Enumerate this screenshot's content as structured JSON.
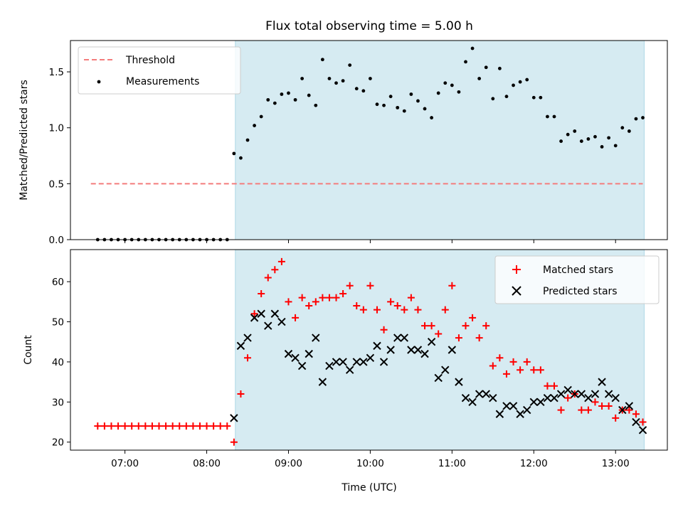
{
  "chart_data": [
    {
      "type": "scatter",
      "title": "Flux total observing time = 5.00 h",
      "xlabel": "",
      "ylabel": "Matched/Predicted stars",
      "ylim": [
        0,
        1.78
      ],
      "xlim": [
        "06:20",
        "13:38"
      ],
      "yticks": [
        "0.0",
        "0.5",
        "1.0",
        "1.5"
      ],
      "shaded_span": [
        "08:21",
        "13:21"
      ],
      "legend_position": "top-left",
      "threshold": {
        "name": "Threshold",
        "value": 0.5,
        "x": [
          "06:35",
          "13:20"
        ],
        "color": "#f47c7c"
      },
      "measurements": {
        "name": "Measurements",
        "color": "#000000",
        "x": [
          "06:40",
          "06:45",
          "06:50",
          "06:55",
          "07:00",
          "07:05",
          "07:10",
          "07:15",
          "07:20",
          "07:25",
          "07:30",
          "07:35",
          "07:40",
          "07:45",
          "07:50",
          "07:55",
          "08:00",
          "08:05",
          "08:10",
          "08:15",
          "08:20",
          "08:25",
          "08:30",
          "08:35",
          "08:40",
          "08:45",
          "08:50",
          "08:55",
          "09:00",
          "09:05",
          "09:10",
          "09:15",
          "09:20",
          "09:25",
          "09:30",
          "09:35",
          "09:40",
          "09:45",
          "09:50",
          "09:55",
          "10:00",
          "10:05",
          "10:10",
          "10:15",
          "10:20",
          "10:25",
          "10:30",
          "10:35",
          "10:40",
          "10:45",
          "10:50",
          "10:55",
          "11:00",
          "11:05",
          "11:10",
          "11:15",
          "11:20",
          "11:25",
          "11:30",
          "11:35",
          "11:40",
          "11:45",
          "11:50",
          "11:55",
          "12:00",
          "12:05",
          "12:10",
          "12:15",
          "12:20",
          "12:25",
          "12:30",
          "12:35",
          "12:40",
          "12:45",
          "12:50",
          "12:55",
          "13:00",
          "13:05",
          "13:10",
          "13:15",
          "13:20"
        ],
        "y": [
          0,
          0,
          0,
          0,
          0,
          0,
          0,
          0,
          0,
          0,
          0,
          0,
          0,
          0,
          0,
          0,
          0,
          0,
          0,
          0,
          0.77,
          0.73,
          0.89,
          1.02,
          1.1,
          1.25,
          1.22,
          1.3,
          1.31,
          1.25,
          1.44,
          1.29,
          1.2,
          1.61,
          1.44,
          1.4,
          1.42,
          1.56,
          1.35,
          1.33,
          1.44,
          1.21,
          1.2,
          1.28,
          1.18,
          1.15,
          1.3,
          1.24,
          1.17,
          1.09,
          1.31,
          1.4,
          1.38,
          1.32,
          1.59,
          1.71,
          1.44,
          1.54,
          1.26,
          1.53,
          1.28,
          1.38,
          1.41,
          1.43,
          1.27,
          1.27,
          1.1,
          1.1,
          0.88,
          0.94,
          0.97,
          0.88,
          0.9,
          0.92,
          0.83,
          0.91,
          0.84,
          1.0,
          0.97,
          1.08,
          1.09
        ]
      }
    },
    {
      "type": "scatter",
      "title": "",
      "xlabel": "Time (UTC)",
      "ylabel": "Count",
      "ylim": [
        18,
        68
      ],
      "xlim": [
        "06:20",
        "13:38"
      ],
      "xticks": [
        "07:00",
        "08:00",
        "09:00",
        "10:00",
        "11:00",
        "12:00",
        "13:00"
      ],
      "yticks": [
        20,
        30,
        40,
        50,
        60
      ],
      "shaded_span": [
        "08:21",
        "13:21"
      ],
      "legend_position": "top-right",
      "series": [
        {
          "name": "Matched stars",
          "marker": "+",
          "color": "#ff0000",
          "x": [
            "06:40",
            "06:45",
            "06:50",
            "06:55",
            "07:00",
            "07:05",
            "07:10",
            "07:15",
            "07:20",
            "07:25",
            "07:30",
            "07:35",
            "07:40",
            "07:45",
            "07:50",
            "07:55",
            "08:00",
            "08:05",
            "08:10",
            "08:15",
            "08:20",
            "08:25",
            "08:30",
            "08:35",
            "08:40",
            "08:45",
            "08:50",
            "08:55",
            "09:00",
            "09:05",
            "09:10",
            "09:15",
            "09:20",
            "09:25",
            "09:30",
            "09:35",
            "09:40",
            "09:45",
            "09:50",
            "09:55",
            "10:00",
            "10:05",
            "10:10",
            "10:15",
            "10:20",
            "10:25",
            "10:30",
            "10:35",
            "10:40",
            "10:45",
            "10:50",
            "10:55",
            "11:00",
            "11:05",
            "11:10",
            "11:15",
            "11:20",
            "11:25",
            "11:30",
            "11:35",
            "11:40",
            "11:45",
            "11:50",
            "11:55",
            "12:00",
            "12:05",
            "12:10",
            "12:15",
            "12:20",
            "12:25",
            "12:30",
            "12:35",
            "12:40",
            "12:45",
            "12:50",
            "12:55",
            "13:00",
            "13:05",
            "13:10",
            "13:15",
            "13:20"
          ],
          "y": [
            24,
            24,
            24,
            24,
            24,
            24,
            24,
            24,
            24,
            24,
            24,
            24,
            24,
            24,
            24,
            24,
            24,
            24,
            24,
            24,
            20,
            32,
            41,
            52,
            57,
            61,
            63,
            65,
            55,
            51,
            56,
            54,
            55,
            56,
            56,
            56,
            57,
            59,
            54,
            53,
            59,
            53,
            48,
            55,
            54,
            53,
            56,
            53,
            49,
            49,
            47,
            53,
            59,
            46,
            49,
            51,
            46,
            49,
            39,
            41,
            37,
            40,
            38,
            40,
            38,
            38,
            34,
            34,
            28,
            31,
            32,
            28,
            28,
            30,
            29,
            29,
            26,
            28,
            28,
            27,
            25
          ]
        },
        {
          "name": "Predicted stars",
          "marker": "x",
          "color": "#000000",
          "x": [
            "08:20",
            "08:25",
            "08:30",
            "08:35",
            "08:40",
            "08:45",
            "08:50",
            "08:55",
            "09:00",
            "09:05",
            "09:10",
            "09:15",
            "09:20",
            "09:25",
            "09:30",
            "09:35",
            "09:40",
            "09:45",
            "09:50",
            "09:55",
            "10:00",
            "10:05",
            "10:10",
            "10:15",
            "10:20",
            "10:25",
            "10:30",
            "10:35",
            "10:40",
            "10:45",
            "10:50",
            "10:55",
            "11:00",
            "11:05",
            "11:10",
            "11:15",
            "11:20",
            "11:25",
            "11:30",
            "11:35",
            "11:40",
            "11:45",
            "11:50",
            "11:55",
            "12:00",
            "12:05",
            "12:10",
            "12:15",
            "12:20",
            "12:25",
            "12:30",
            "12:35",
            "12:40",
            "12:45",
            "12:50",
            "12:55",
            "13:00",
            "13:05",
            "13:10",
            "13:15",
            "13:20"
          ],
          "y": [
            26,
            44,
            46,
            51,
            52,
            49,
            52,
            50,
            42,
            41,
            39,
            42,
            46,
            35,
            39,
            40,
            40,
            38,
            40,
            40,
            41,
            44,
            40,
            43,
            46,
            46,
            43,
            43,
            42,
            45,
            36,
            38,
            43,
            35,
            31,
            30,
            32,
            32,
            31,
            27,
            29,
            29,
            27,
            28,
            30,
            30,
            31,
            31,
            32,
            33,
            32,
            32,
            31,
            32,
            35,
            32,
            31,
            28,
            29,
            25,
            23
          ]
        }
      ]
    }
  ]
}
